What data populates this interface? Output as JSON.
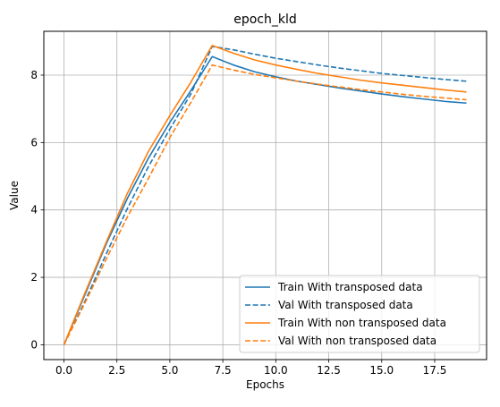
{
  "chart_data": {
    "type": "line",
    "title": "epoch_kld",
    "xlabel": "Epochs",
    "ylabel": "Value",
    "xlim": [
      -0.95,
      19.95
    ],
    "ylim": [
      -0.44,
      9.3
    ],
    "xticks": [
      0.0,
      2.5,
      5.0,
      7.5,
      10.0,
      12.5,
      15.0,
      17.5
    ],
    "xtick_labels": [
      "0.0",
      "2.5",
      "5.0",
      "7.5",
      "10.0",
      "12.5",
      "15.0",
      "17.5"
    ],
    "yticks": [
      0,
      2,
      4,
      6,
      8
    ],
    "ytick_labels": [
      "0",
      "2",
      "4",
      "6",
      "8"
    ],
    "grid": true,
    "legend_position": "lower-right",
    "x": [
      0,
      1,
      2,
      3,
      4,
      5,
      6,
      7,
      8,
      9,
      10,
      11,
      12,
      13,
      14,
      15,
      16,
      17,
      18,
      19
    ],
    "series": [
      {
        "name": "Train With transposed data",
        "color": "#1f77b4",
        "linestyle": "solid",
        "values": [
          0.0,
          1.5,
          3.0,
          4.35,
          5.55,
          6.6,
          7.55,
          8.55,
          8.3,
          8.1,
          7.95,
          7.82,
          7.72,
          7.62,
          7.53,
          7.44,
          7.36,
          7.29,
          7.22,
          7.17
        ]
      },
      {
        "name": "Val With transposed data",
        "color": "#1f77b4",
        "linestyle": "dashed",
        "values": [
          0.0,
          1.3,
          2.7,
          4.05,
          5.3,
          6.4,
          7.45,
          8.85,
          8.75,
          8.62,
          8.5,
          8.4,
          8.3,
          8.21,
          8.13,
          8.05,
          7.99,
          7.93,
          7.87,
          7.82
        ]
      },
      {
        "name": "Train With non transposed data",
        "color": "#ff7f0e",
        "linestyle": "solid",
        "values": [
          0.0,
          1.55,
          3.05,
          4.5,
          5.75,
          6.8,
          7.8,
          8.88,
          8.65,
          8.45,
          8.3,
          8.17,
          8.05,
          7.95,
          7.85,
          7.77,
          7.7,
          7.63,
          7.56,
          7.5
        ]
      },
      {
        "name": "Val With non transposed data",
        "color": "#ff7f0e",
        "linestyle": "dashed",
        "values": [
          0.0,
          1.25,
          2.55,
          3.8,
          4.95,
          6.15,
          7.2,
          8.3,
          8.15,
          8.02,
          7.92,
          7.82,
          7.73,
          7.65,
          7.57,
          7.5,
          7.43,
          7.37,
          7.32,
          7.27
        ]
      }
    ]
  }
}
